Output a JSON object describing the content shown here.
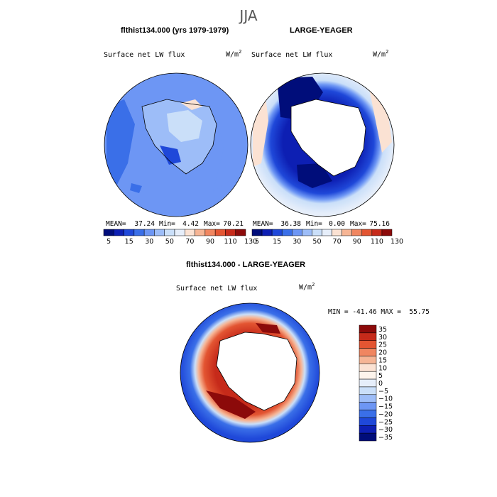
{
  "figure": {
    "season": "JJA",
    "left_title": "flthist134.000 (yrs 1979-1979)",
    "right_title": "LARGE-YEAGER",
    "diff_title": "flthist134.000 - LARGE-YEAGER"
  },
  "panels": {
    "left": {
      "variable": "Surface net LW flux",
      "units_base": "W/m",
      "units_exp": "2",
      "stats": {
        "mean_label": "MEAN=",
        "mean": "37.24",
        "min_label": "Min=",
        "min": "4.42",
        "max_label": "Max=",
        "max": "70.21"
      }
    },
    "right": {
      "variable": "Surface net LW flux",
      "units_base": "W/m",
      "units_exp": "2",
      "stats": {
        "mean_label": "MEAN=",
        "mean": "36.38",
        "min_label": "Min=",
        "min": "0.00",
        "max_label": "Max=",
        "max": "75.16"
      }
    },
    "diff": {
      "variable": "Surface net LW flux",
      "units_base": "W/m",
      "units_exp": "2",
      "minmax": "MIN = -41.46 MAX =  55.75"
    }
  },
  "colors": {
    "land": "#ffffff",
    "abs_base": "#6d96f4",
    "outline": "#000000"
  },
  "chart_data": [
    {
      "type": "heatmap",
      "name": "left-polar-map",
      "projection": "south-polar-stereographic",
      "title": "Surface net LW flux",
      "dominant_range": [
        30,
        50
      ],
      "colorbar_colors": [
        "#000d7a",
        "#0d1fb3",
        "#1f48d9",
        "#3a6fe8",
        "#6d96f4",
        "#9dbdf8",
        "#cadff9",
        "#e6eefa",
        "#fbe2d3",
        "#f6b595",
        "#f08660",
        "#e35532",
        "#c62a1a",
        "#8c0a0a"
      ],
      "colorbar_ticks": [
        "5",
        "15",
        "30",
        "50",
        "70",
        "90",
        "110",
        "130"
      ]
    },
    {
      "type": "heatmap",
      "name": "right-polar-map",
      "projection": "south-polar-stereographic",
      "title": "Surface net LW flux",
      "ring_range": [
        5,
        15
      ],
      "colorbar_colors": [
        "#000d7a",
        "#0d1fb3",
        "#1f48d9",
        "#3a6fe8",
        "#6d96f4",
        "#9dbdf8",
        "#cadff9",
        "#e6eefa",
        "#fbe2d3",
        "#f6b595",
        "#f08660",
        "#e35532",
        "#c62a1a",
        "#8c0a0a"
      ],
      "colorbar_ticks": [
        "5",
        "15",
        "30",
        "50",
        "70",
        "90",
        "110",
        "130"
      ]
    },
    {
      "type": "heatmap",
      "name": "difference-polar-map",
      "projection": "south-polar-stereographic",
      "title": "Surface net LW flux",
      "min": -41.46,
      "max": 55.75,
      "colorbar_colors": [
        "#8c0a0a",
        "#c62a1a",
        "#e35532",
        "#f08660",
        "#f6b595",
        "#fbe2d3",
        "#fdf4ec",
        "#e6eefa",
        "#cadff9",
        "#9dbdf8",
        "#6d96f4",
        "#3a6fe8",
        "#1f48d9",
        "#0d1fb3",
        "#000d7a"
      ],
      "colorbar_ticks": [
        "35",
        "30",
        "25",
        "20",
        "15",
        "10",
        "5",
        "0",
        "−5",
        "−10",
        "−15",
        "−20",
        "−25",
        "−30",
        "−35"
      ]
    }
  ]
}
